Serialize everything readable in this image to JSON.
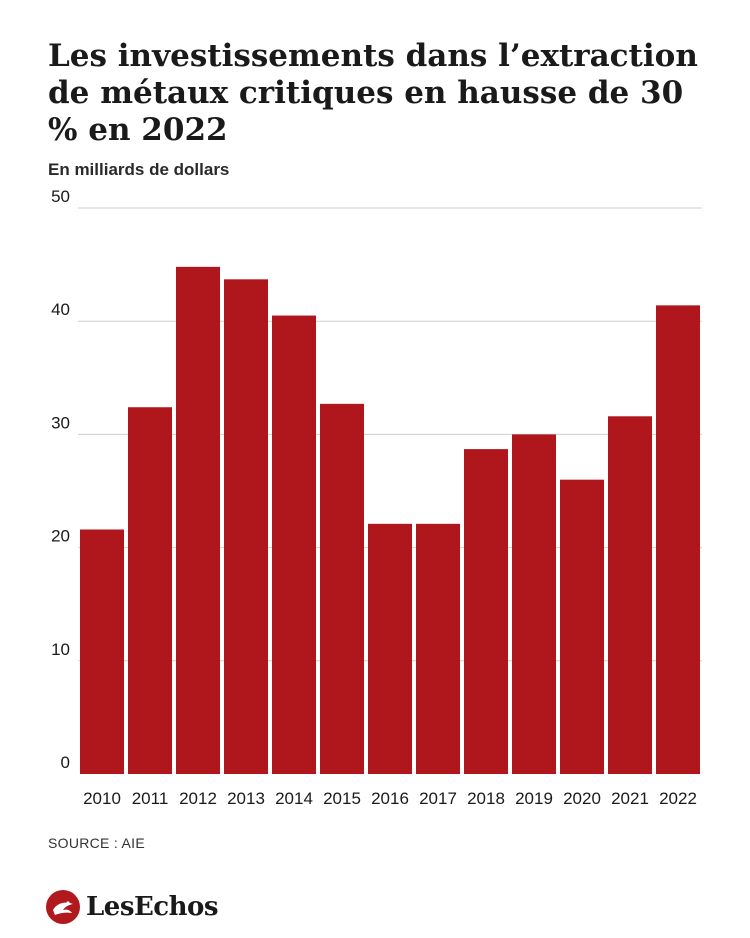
{
  "header": {
    "title": "Les investissements dans l’extraction de métaux critiques en hausse de 30 % en 2022",
    "subtitle": "En milliards de dollars"
  },
  "footer": {
    "source": "SOURCE : AIE",
    "logo_text": "LesEchos"
  },
  "colors": {
    "bar": "#b0171c",
    "grid": "#cfcfcf",
    "text": "#1a1a1a"
  },
  "chart_data": {
    "type": "bar",
    "categories": [
      "2010",
      "2011",
      "2012",
      "2013",
      "2014",
      "2015",
      "2016",
      "2017",
      "2018",
      "2019",
      "2020",
      "2021",
      "2022"
    ],
    "values": [
      21.6,
      32.4,
      44.8,
      43.7,
      40.5,
      32.7,
      22.1,
      22.1,
      28.7,
      30.0,
      26.0,
      31.6,
      41.4
    ],
    "ylim": [
      0,
      50
    ],
    "yticks": [
      0,
      10,
      20,
      30,
      40,
      50
    ],
    "grid": true,
    "legend": "none"
  }
}
